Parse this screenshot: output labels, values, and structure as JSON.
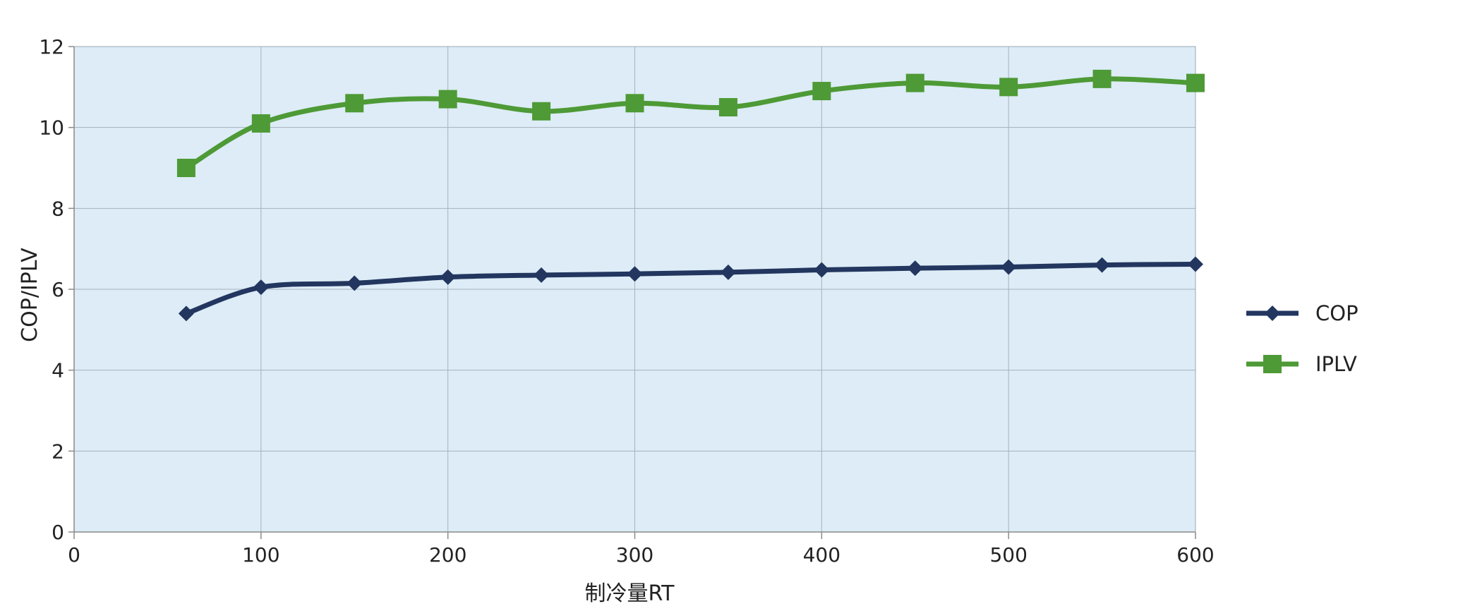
{
  "chart_data": {
    "type": "line",
    "xlabel": "制冷量RT",
    "ylabel": "COP/IPLV",
    "xlim": [
      0,
      600
    ],
    "ylim": [
      0,
      12
    ],
    "xticks": [
      0,
      100,
      200,
      300,
      400,
      500,
      600
    ],
    "xtick_labels": [
      "0",
      "100",
      "200",
      "300",
      "400",
      "500",
      "600"
    ],
    "yticks": [
      0,
      2,
      4,
      6,
      8,
      10,
      12
    ],
    "ytick_labels": [
      "0",
      "2",
      "4",
      "6",
      "8",
      "10",
      "12"
    ],
    "grid": true,
    "plot_background": "#ddecf6",
    "legend_position": "right",
    "series": [
      {
        "name": "COP",
        "color": "#22365f",
        "marker": "diamond",
        "x": [
          60,
          100,
          150,
          200,
          250,
          300,
          350,
          400,
          450,
          500,
          550,
          600
        ],
        "values": [
          5.4,
          6.05,
          6.15,
          6.3,
          6.35,
          6.38,
          6.42,
          6.48,
          6.52,
          6.55,
          6.6,
          6.62
        ]
      },
      {
        "name": "IPLV",
        "color": "#4e9a36",
        "marker": "square",
        "x": [
          60,
          100,
          150,
          200,
          250,
          300,
          350,
          400,
          450,
          500,
          550,
          600
        ],
        "values": [
          9.0,
          10.1,
          10.6,
          10.7,
          10.4,
          10.6,
          10.5,
          10.9,
          11.1,
          11.0,
          11.2,
          11.1
        ]
      }
    ]
  }
}
